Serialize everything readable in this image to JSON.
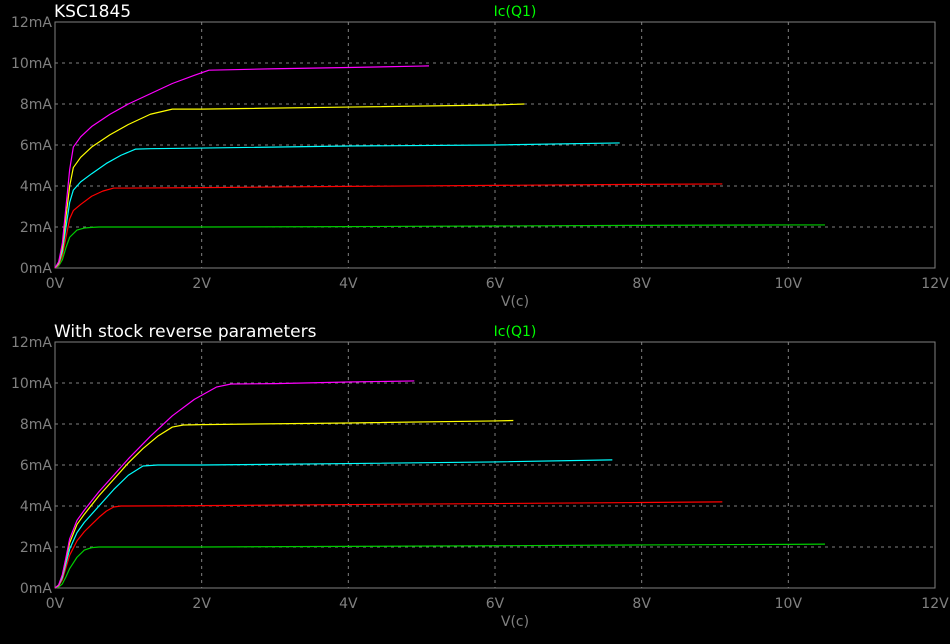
{
  "window": {
    "background": "#000000",
    "grid_color": "#808080",
    "text_color": "#ffffff"
  },
  "chart_data": [
    {
      "type": "line",
      "title": "KSC1845",
      "trace_label": "Ic(Q1)",
      "trace_label_color": "#00ff00",
      "xlabel": "V(c)",
      "ylabel": "",
      "xlim": [
        0,
        12
      ],
      "ylim": [
        0,
        12
      ],
      "x_unit": "V",
      "y_unit": "mA",
      "x_ticks": [
        "0V",
        "2V",
        "4V",
        "6V",
        "8V",
        "10V",
        "12V"
      ],
      "y_ticks": [
        "0mA",
        "2mA",
        "4mA",
        "6mA",
        "8mA",
        "10mA",
        "12mA"
      ],
      "grid": true,
      "series": [
        {
          "color": "#00cc00",
          "x": [
            0,
            0.05,
            0.1,
            0.15,
            0.2,
            0.3,
            0.4,
            0.5,
            0.6,
            1.0,
            2.0,
            4.0,
            6.0,
            8.0,
            10.0,
            10.5
          ],
          "y": [
            0,
            0.1,
            0.4,
            1.0,
            1.5,
            1.85,
            1.95,
            1.98,
            2.0,
            2.0,
            2.0,
            2.02,
            2.05,
            2.08,
            2.1,
            2.1
          ]
        },
        {
          "color": "#ff0000",
          "x": [
            0,
            0.05,
            0.1,
            0.15,
            0.2,
            0.25,
            0.35,
            0.5,
            0.65,
            0.8,
            1.0,
            2.0,
            4.0,
            6.0,
            8.0,
            9.1
          ],
          "y": [
            0,
            0.15,
            0.6,
            1.5,
            2.4,
            2.8,
            3.1,
            3.5,
            3.75,
            3.9,
            3.9,
            3.92,
            3.98,
            4.03,
            4.08,
            4.1
          ]
        },
        {
          "color": "#00ffff",
          "x": [
            0,
            0.05,
            0.1,
            0.15,
            0.2,
            0.25,
            0.35,
            0.5,
            0.7,
            0.9,
            1.1,
            1.3,
            2.0,
            4.0,
            6.0,
            7.7
          ],
          "y": [
            0,
            0.2,
            0.8,
            2.0,
            3.2,
            3.8,
            4.2,
            4.6,
            5.1,
            5.5,
            5.8,
            5.82,
            5.85,
            5.95,
            6.0,
            6.1
          ]
        },
        {
          "color": "#ffff00",
          "x": [
            0,
            0.05,
            0.1,
            0.15,
            0.2,
            0.25,
            0.35,
            0.5,
            0.75,
            1.0,
            1.3,
            1.6,
            2.0,
            4.0,
            6.0,
            6.4
          ],
          "y": [
            0,
            0.25,
            1.0,
            2.5,
            4.0,
            4.9,
            5.4,
            5.9,
            6.5,
            7.0,
            7.5,
            7.75,
            7.75,
            7.85,
            7.95,
            8.0
          ]
        },
        {
          "color": "#ff00ff",
          "x": [
            0,
            0.05,
            0.1,
            0.15,
            0.2,
            0.25,
            0.35,
            0.5,
            0.75,
            1.0,
            1.3,
            1.6,
            1.9,
            2.1,
            2.5,
            3.0,
            4.0,
            5.0,
            5.1
          ],
          "y": [
            0,
            0.3,
            1.2,
            3.0,
            4.8,
            5.9,
            6.4,
            6.9,
            7.5,
            8.0,
            8.5,
            9.0,
            9.4,
            9.65,
            9.68,
            9.72,
            9.78,
            9.85,
            9.86
          ]
        }
      ]
    },
    {
      "type": "line",
      "title": "With stock reverse parameters",
      "trace_label": "Ic(Q1)",
      "trace_label_color": "#00ff00",
      "xlabel": "V(c)",
      "ylabel": "",
      "xlim": [
        0,
        12
      ],
      "ylim": [
        0,
        12
      ],
      "x_unit": "V",
      "y_unit": "mA",
      "x_ticks": [
        "0V",
        "2V",
        "4V",
        "6V",
        "8V",
        "10V",
        "12V"
      ],
      "y_ticks": [
        "0mA",
        "2mA",
        "4mA",
        "6mA",
        "8mA",
        "10mA",
        "12mA"
      ],
      "grid": true,
      "series": [
        {
          "color": "#00cc00",
          "x": [
            0,
            0.05,
            0.1,
            0.15,
            0.2,
            0.3,
            0.4,
            0.5,
            0.6,
            1.0,
            2.0,
            4.0,
            6.0,
            8.0,
            10.0,
            10.5
          ],
          "y": [
            0,
            0.05,
            0.2,
            0.55,
            0.95,
            1.5,
            1.85,
            1.97,
            2.0,
            2.0,
            2.0,
            2.03,
            2.06,
            2.1,
            2.13,
            2.14
          ]
        },
        {
          "color": "#ff0000",
          "x": [
            0,
            0.05,
            0.1,
            0.15,
            0.2,
            0.3,
            0.4,
            0.5,
            0.6,
            0.7,
            0.8,
            0.9,
            2.0,
            4.0,
            6.0,
            8.0,
            9.1
          ],
          "y": [
            0,
            0.1,
            0.4,
            1.0,
            1.6,
            2.3,
            2.75,
            3.1,
            3.45,
            3.75,
            3.95,
            4.0,
            4.02,
            4.07,
            4.12,
            4.17,
            4.2
          ]
        },
        {
          "color": "#00ffff",
          "x": [
            0,
            0.05,
            0.1,
            0.15,
            0.2,
            0.3,
            0.4,
            0.6,
            0.8,
            1.0,
            1.2,
            1.4,
            2.0,
            4.0,
            6.0,
            7.6
          ],
          "y": [
            0,
            0.12,
            0.5,
            1.2,
            1.9,
            2.7,
            3.2,
            4.0,
            4.8,
            5.5,
            5.95,
            6.0,
            6.0,
            6.07,
            6.15,
            6.25
          ]
        },
        {
          "color": "#ffff00",
          "x": [
            0,
            0.05,
            0.1,
            0.15,
            0.2,
            0.3,
            0.4,
            0.6,
            0.8,
            1.0,
            1.2,
            1.4,
            1.6,
            1.75,
            2.0,
            4.0,
            6.0,
            6.25
          ],
          "y": [
            0,
            0.14,
            0.6,
            1.4,
            2.2,
            3.1,
            3.6,
            4.5,
            5.3,
            6.1,
            6.8,
            7.4,
            7.85,
            7.95,
            7.97,
            8.05,
            8.15,
            8.17
          ]
        },
        {
          "color": "#ff00ff",
          "x": [
            0,
            0.05,
            0.1,
            0.15,
            0.2,
            0.3,
            0.4,
            0.6,
            0.8,
            1.0,
            1.3,
            1.6,
            1.9,
            2.2,
            2.4,
            3.0,
            4.0,
            4.9
          ],
          "y": [
            0,
            0.15,
            0.65,
            1.5,
            2.4,
            3.3,
            3.8,
            4.7,
            5.5,
            6.3,
            7.4,
            8.4,
            9.2,
            9.8,
            9.95,
            9.97,
            10.05,
            10.1
          ]
        }
      ]
    }
  ]
}
